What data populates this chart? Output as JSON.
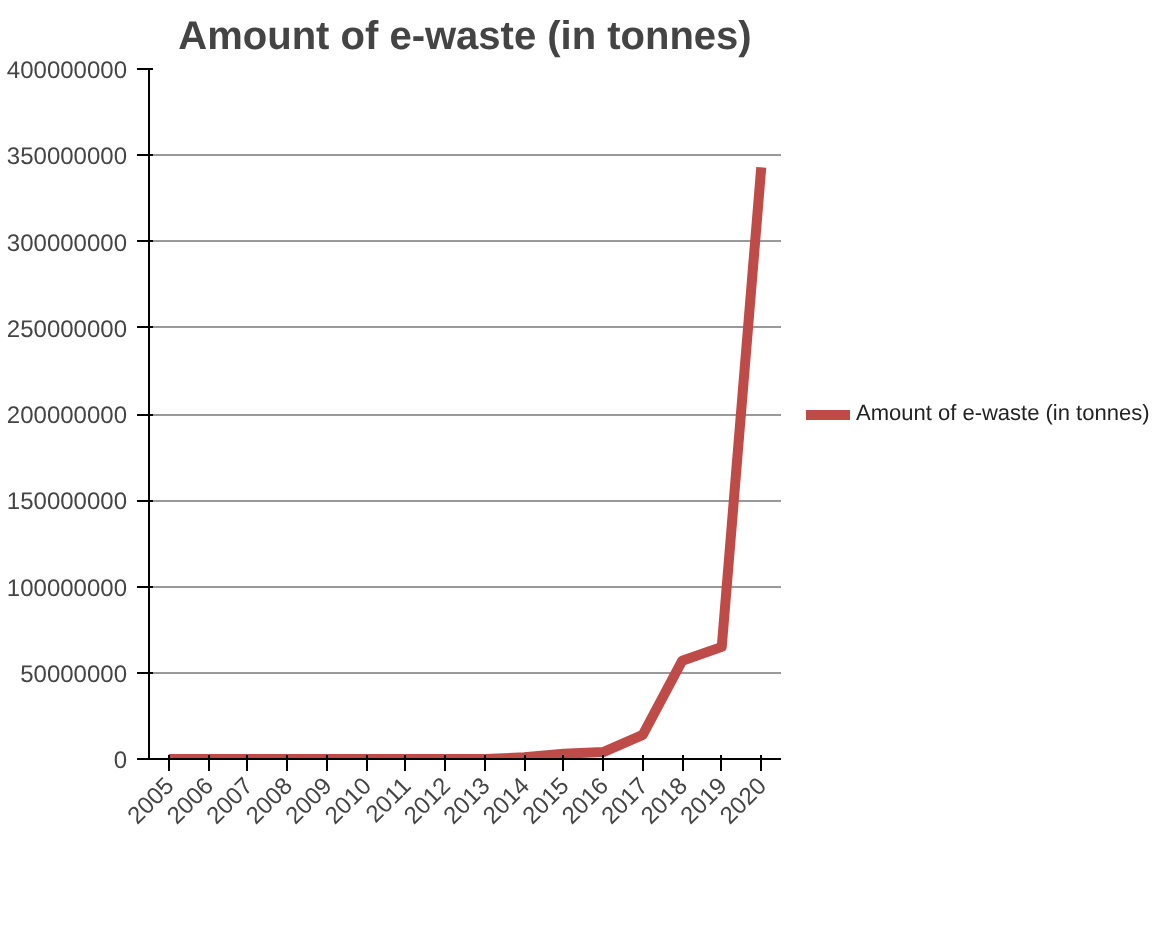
{
  "chart_data": {
    "type": "line",
    "title": "Amount of e-waste (in tonnes)",
    "categories": [
      "2005",
      "2006",
      "2007",
      "2008",
      "2009",
      "2010",
      "2011",
      "2012",
      "2013",
      "2014",
      "2015",
      "2016",
      "2017",
      "2018",
      "2019",
      "2020"
    ],
    "series": [
      {
        "name": "Amount of e-waste (in tonnes)",
        "color": "#be4b48",
        "values": [
          0,
          0,
          0,
          0,
          0,
          0,
          0,
          0,
          0,
          1000000,
          3000000,
          4000000,
          14000000,
          57000000,
          65000000,
          343000000
        ]
      }
    ],
    "ylim": [
      0,
      400000000
    ],
    "yticks": [
      0,
      50000000,
      100000000,
      150000000,
      200000000,
      250000000,
      300000000,
      350000000,
      400000000
    ],
    "grid": "y",
    "legend": "right",
    "marker": "none",
    "line_style": "solid"
  }
}
